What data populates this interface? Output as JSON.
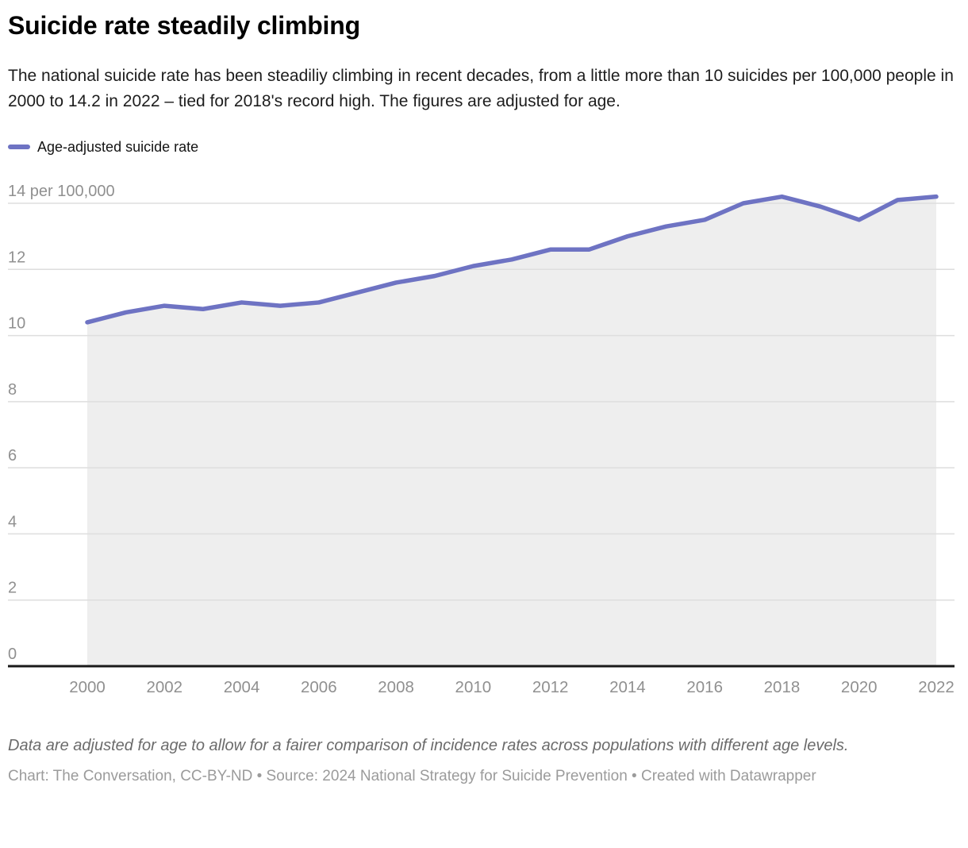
{
  "header": {
    "title": "Suicide rate steadily climbing",
    "description": "The national suicide rate has been steadiliy climbing in recent decades, from a little more than 10 suicides per 100,000 people in 2000 to 14.2 in 2022 – tied for 2018's record high. The figures are adjusted for age."
  },
  "legend": {
    "label": "Age-adjusted suicide rate",
    "swatch_color": "#6e73c3"
  },
  "chart_data": {
    "type": "area",
    "x": [
      2000,
      2001,
      2002,
      2003,
      2004,
      2005,
      2006,
      2007,
      2008,
      2009,
      2010,
      2011,
      2012,
      2013,
      2014,
      2015,
      2016,
      2017,
      2018,
      2019,
      2020,
      2021,
      2022
    ],
    "series": [
      {
        "name": "Age-adjusted suicide rate",
        "values": [
          10.4,
          10.7,
          10.9,
          10.8,
          11.0,
          10.9,
          11.0,
          11.3,
          11.6,
          11.8,
          12.1,
          12.3,
          12.6,
          12.6,
          13.0,
          13.3,
          13.5,
          14.0,
          14.2,
          13.9,
          13.5,
          14.1,
          14.2
        ]
      }
    ],
    "title": "Suicide rate steadily climbing",
    "xlabel": "",
    "ylabel": "per 100,000",
    "ylim": [
      0,
      14.6
    ],
    "yticks": [
      0,
      2,
      4,
      6,
      8,
      10,
      12,
      14
    ],
    "ytick_top_label": "14 per 100,000",
    "xticks": [
      2000,
      2002,
      2004,
      2006,
      2008,
      2010,
      2012,
      2014,
      2016,
      2018,
      2020,
      2022
    ],
    "grid": true,
    "legend_position": "top-left",
    "line_color": "#6e73c3",
    "fill_color": "#eeeeee",
    "gridline_color": "#dedede",
    "axis_color": "#1a1a1a",
    "tick_label_color": "#909090"
  },
  "footer": {
    "note": "Data are adjusted for age to allow for a fairer comparison of incidence rates across populations with different age levels.",
    "credit": "Chart: The Conversation, CC-BY-ND • Source: 2024 National Strategy for Suicide Prevention • Created with Datawrapper"
  }
}
